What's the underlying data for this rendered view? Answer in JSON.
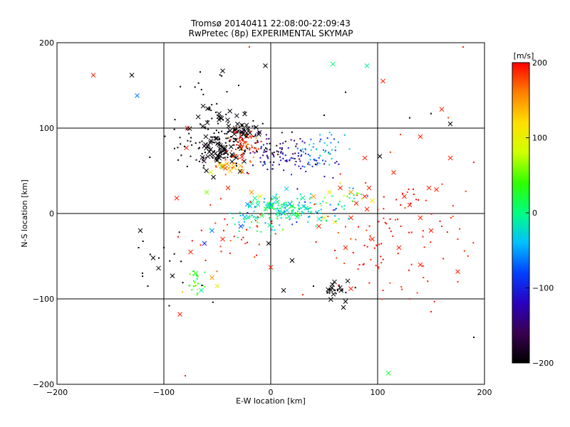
{
  "chart_data": {
    "type": "scatter",
    "title": "Tromsø 20140411 22:08:00-22:09:43",
    "subtitle": "RwPretec (8p) EXPERIMENTAL SKYMAP",
    "xlabel": "E-W location [km]",
    "ylabel": "N-S location [km]",
    "xlim": [
      -200,
      200
    ],
    "ylim": [
      -200,
      200
    ],
    "xticks": [
      -200,
      -100,
      0,
      100,
      200
    ],
    "yticks": [
      -200,
      -100,
      0,
      100,
      200
    ],
    "xtick_labels": [
      "−200",
      "−100",
      "0",
      "100",
      "200"
    ],
    "ytick_labels": [
      "−200",
      "−100",
      "0",
      "100",
      "200"
    ],
    "grid": true,
    "colorbar": {
      "label": "[m/s]",
      "min": -200,
      "max": 200,
      "ticks": [
        200,
        100,
        0,
        -100,
        -200
      ],
      "tick_labels": [
        "200",
        "100",
        "0",
        "−100",
        "−200"
      ],
      "stops": [
        "#000000",
        "#3a0050",
        "#2a00c0",
        "#0040ff",
        "#00c0ff",
        "#00ff80",
        "#30ff00",
        "#d0ff00",
        "#ffe000",
        "#ff8000",
        "#ff0000"
      ]
    },
    "points": [
      {
        "x": -166,
        "y": 162,
        "v": 190,
        "m": "x"
      },
      {
        "x": -130,
        "y": 162,
        "v": -200,
        "m": "x"
      },
      {
        "x": -125,
        "y": 138,
        "v": -60,
        "m": "x"
      },
      {
        "x": -45,
        "y": 167,
        "v": -200,
        "m": "x"
      },
      {
        "x": -5,
        "y": 173,
        "v": -200,
        "m": "x"
      },
      {
        "x": 58,
        "y": 175,
        "v": 0,
        "m": "x"
      },
      {
        "x": 90,
        "y": 173,
        "v": -10,
        "m": "x"
      },
      {
        "x": 105,
        "y": 155,
        "v": 190,
        "m": "x"
      },
      {
        "x": 160,
        "y": 122,
        "v": 190,
        "m": "x"
      },
      {
        "x": 168,
        "y": 105,
        "v": -200,
        "m": "x"
      },
      {
        "x": 140,
        "y": 90,
        "v": 190,
        "m": "x"
      },
      {
        "x": 168,
        "y": 65,
        "v": 190,
        "m": "x"
      },
      {
        "x": 115,
        "y": 48,
        "v": 190,
        "m": "x"
      },
      {
        "x": 148,
        "y": 30,
        "v": 190,
        "m": "x"
      },
      {
        "x": 102,
        "y": 67,
        "v": -200,
        "m": "x"
      },
      {
        "x": 88,
        "y": 65,
        "v": 190,
        "m": "x"
      },
      {
        "x": -78,
        "y": 100,
        "v": 190,
        "m": "x"
      },
      {
        "x": -79,
        "y": 77,
        "v": 190,
        "m": "x"
      },
      {
        "x": -88,
        "y": 18,
        "v": 190,
        "m": "x"
      },
      {
        "x": -122,
        "y": -20,
        "v": -200,
        "m": "x"
      },
      {
        "x": -110,
        "y": -52,
        "v": -200,
        "m": "x"
      },
      {
        "x": -105,
        "y": -64,
        "v": -200,
        "m": "x"
      },
      {
        "x": -92,
        "y": -73,
        "v": -200,
        "m": "x"
      },
      {
        "x": -85,
        "y": -118,
        "v": 190,
        "m": "x"
      },
      {
        "x": -75,
        "y": -45,
        "v": 190,
        "m": "x"
      },
      {
        "x": -62,
        "y": -35,
        "v": -100,
        "m": "x"
      },
      {
        "x": -55,
        "y": -20,
        "v": -60,
        "m": "x"
      },
      {
        "x": -60,
        "y": 25,
        "v": 60,
        "m": "x"
      },
      {
        "x": -40,
        "y": 30,
        "v": 190,
        "m": "x"
      },
      {
        "x": -38,
        "y": 50,
        "v": 130,
        "m": "x"
      },
      {
        "x": -28,
        "y": 50,
        "v": 80,
        "m": "x"
      },
      {
        "x": -18,
        "y": 25,
        "v": 150,
        "m": "x"
      },
      {
        "x": -10,
        "y": 20,
        "v": 110,
        "m": "x"
      },
      {
        "x": -28,
        "y": -15,
        "v": -80,
        "m": "x"
      },
      {
        "x": -45,
        "y": -30,
        "v": 190,
        "m": "x"
      },
      {
        "x": -2,
        "y": -35,
        "v": -200,
        "m": "x"
      },
      {
        "x": -70,
        "y": -70,
        "v": 30,
        "m": "x"
      },
      {
        "x": -65,
        "y": -90,
        "v": -10,
        "m": "x"
      },
      {
        "x": -50,
        "y": -85,
        "v": 100,
        "m": "x"
      },
      {
        "x": -55,
        "y": -75,
        "v": 150,
        "m": "x"
      },
      {
        "x": 0,
        "y": -63,
        "v": 190,
        "m": "x"
      },
      {
        "x": 20,
        "y": -55,
        "v": -200,
        "m": "x"
      },
      {
        "x": 12,
        "y": -90,
        "v": -200,
        "m": "x"
      },
      {
        "x": 40,
        "y": 20,
        "v": 150,
        "m": "x"
      },
      {
        "x": 55,
        "y": 25,
        "v": 110,
        "m": "x"
      },
      {
        "x": 65,
        "y": 30,
        "v": 190,
        "m": "x"
      },
      {
        "x": 75,
        "y": 25,
        "v": 150,
        "m": "x"
      },
      {
        "x": 92,
        "y": 30,
        "v": 190,
        "m": "x"
      },
      {
        "x": 88,
        "y": 20,
        "v": 190,
        "m": "x"
      },
      {
        "x": 95,
        "y": 15,
        "v": 110,
        "m": "x"
      },
      {
        "x": 125,
        "y": 20,
        "v": 190,
        "m": "x"
      },
      {
        "x": 130,
        "y": 10,
        "v": 190,
        "m": "x"
      },
      {
        "x": 155,
        "y": 28,
        "v": 190,
        "m": "x"
      },
      {
        "x": 80,
        "y": 12,
        "v": 190,
        "m": "x"
      },
      {
        "x": 90,
        "y": 5,
        "v": 190,
        "m": "x"
      },
      {
        "x": 60,
        "y": -10,
        "v": 110,
        "m": "x"
      },
      {
        "x": 75,
        "y": -5,
        "v": 190,
        "m": "x"
      },
      {
        "x": 45,
        "y": -15,
        "v": 190,
        "m": "x"
      },
      {
        "x": 50,
        "y": -5,
        "v": 100,
        "m": "x"
      },
      {
        "x": 70,
        "y": -40,
        "v": 190,
        "m": "x"
      },
      {
        "x": 95,
        "y": -30,
        "v": 190,
        "m": "x"
      },
      {
        "x": 120,
        "y": -40,
        "v": 190,
        "m": "x"
      },
      {
        "x": 140,
        "y": -60,
        "v": 190,
        "m": "x"
      },
      {
        "x": 175,
        "y": -68,
        "v": 190,
        "m": "x"
      },
      {
        "x": 140,
        "y": -5,
        "v": 190,
        "m": "x"
      },
      {
        "x": 150,
        "y": -20,
        "v": 190,
        "m": "x"
      },
      {
        "x": 68,
        "y": -110,
        "v": -200,
        "m": "x"
      },
      {
        "x": 70,
        "y": -103,
        "v": -200,
        "m": "x"
      },
      {
        "x": 72,
        "y": -79,
        "v": -200,
        "m": "x"
      },
      {
        "x": 75,
        "y": -88,
        "v": 190,
        "m": "x"
      },
      {
        "x": 110,
        "y": -187,
        "v": 20,
        "m": "x"
      },
      {
        "x": -20,
        "y": 195,
        "v": 190,
        "m": "d"
      },
      {
        "x": -30,
        "y": 150,
        "v": -200,
        "m": "d"
      },
      {
        "x": 70,
        "y": 142,
        "v": -200,
        "m": "d"
      },
      {
        "x": 50,
        "y": 115,
        "v": -200,
        "m": "d"
      },
      {
        "x": 130,
        "y": 112,
        "v": -200,
        "m": "d"
      },
      {
        "x": 150,
        "y": 117,
        "v": -200,
        "m": "d"
      },
      {
        "x": -80,
        "y": -190,
        "v": 190,
        "m": "d"
      },
      {
        "x": 160,
        "y": -15,
        "v": 190,
        "m": "d"
      },
      {
        "x": 175,
        "y": -30,
        "v": 190,
        "m": "d"
      },
      {
        "x": 130,
        "y": -100,
        "v": 190,
        "m": "d"
      },
      {
        "x": 105,
        "y": -90,
        "v": 190,
        "m": "d"
      },
      {
        "x": 150,
        "y": -115,
        "v": 190,
        "m": "d"
      },
      {
        "x": 190,
        "y": -145,
        "v": -200,
        "m": "d"
      },
      {
        "x": 180,
        "y": 195,
        "v": 190,
        "m": "d"
      },
      {
        "x": 190,
        "y": 60,
        "v": 190,
        "m": "d"
      },
      {
        "x": 175,
        "y": -80,
        "v": 190,
        "m": "d"
      },
      {
        "x": -120,
        "y": -70,
        "v": -200,
        "m": "d"
      },
      {
        "x": -115,
        "y": -85,
        "v": -200,
        "m": "d"
      },
      {
        "x": -100,
        "y": -40,
        "v": -200,
        "m": "d"
      },
      {
        "x": -95,
        "y": -108,
        "v": -200,
        "m": "d"
      },
      {
        "x": 30,
        "y": -95,
        "v": 190,
        "m": "d"
      },
      {
        "x": 40,
        "y": -85,
        "v": -200,
        "m": "d"
      }
    ],
    "clusters": [
      {
        "cx": -45,
        "cy": 75,
        "sx": 14,
        "sy": 10,
        "n": 110,
        "v": -200,
        "vspread": 10,
        "m": "dx"
      },
      {
        "cx": -30,
        "cy": 95,
        "sx": 8,
        "sy": 5,
        "n": 55,
        "v": -200,
        "vspread": 10,
        "m": "dx"
      },
      {
        "cx": -25,
        "cy": 88,
        "sx": 6,
        "sy": 6,
        "n": 35,
        "v": 180,
        "vspread": 20,
        "m": "d"
      },
      {
        "cx": -22,
        "cy": 75,
        "sx": 8,
        "sy": 8,
        "n": 35,
        "v": 185,
        "vspread": 15,
        "m": "d"
      },
      {
        "cx": -40,
        "cy": 55,
        "sx": 8,
        "sy": 5,
        "n": 25,
        "v": 150,
        "vspread": 40,
        "m": "dx"
      },
      {
        "cx": -55,
        "cy": 112,
        "sx": 9,
        "sy": 8,
        "n": 30,
        "v": -200,
        "vspread": 10,
        "m": "dx"
      },
      {
        "cx": -60,
        "cy": 80,
        "sx": 20,
        "sy": 12,
        "n": 45,
        "v": -200,
        "vspread": 10,
        "m": "d"
      },
      {
        "cx": 0,
        "cy": 70,
        "sx": 15,
        "sy": 12,
        "n": 80,
        "v": -160,
        "vspread": 25,
        "m": "d"
      },
      {
        "cx": 30,
        "cy": 62,
        "sx": 15,
        "sy": 10,
        "n": 60,
        "v": -100,
        "vspread": 25,
        "m": "d"
      },
      {
        "cx": 50,
        "cy": 78,
        "sx": 12,
        "sy": 8,
        "n": 35,
        "v": -40,
        "vspread": 30,
        "m": "d"
      },
      {
        "cx": 10,
        "cy": 8,
        "sx": 18,
        "sy": 8,
        "n": 120,
        "v": -10,
        "vspread": 30,
        "m": "dx"
      },
      {
        "cx": 40,
        "cy": 2,
        "sx": 15,
        "sy": 8,
        "n": 40,
        "v": -30,
        "vspread": 30,
        "m": "d"
      },
      {
        "cx": -15,
        "cy": -10,
        "sx": 15,
        "sy": 6,
        "n": 30,
        "v": -20,
        "vspread": 30,
        "m": "d"
      },
      {
        "cx": 70,
        "cy": 20,
        "sx": 12,
        "sy": 10,
        "n": 25,
        "v": 20,
        "vspread": 40,
        "m": "d"
      },
      {
        "cx": 60,
        "cy": -90,
        "sx": 5,
        "sy": 4,
        "n": 22,
        "v": -200,
        "vspread": 5,
        "m": "dx"
      },
      {
        "cx": -70,
        "cy": -80,
        "sx": 6,
        "sy": 6,
        "n": 25,
        "v": 30,
        "vspread": 30,
        "m": "d"
      },
      {
        "cx": 130,
        "cy": -20,
        "sx": 30,
        "sy": 40,
        "n": 70,
        "v": 190,
        "vspread": 10,
        "m": "d"
      },
      {
        "cx": -30,
        "cy": -25,
        "sx": 25,
        "sy": 20,
        "n": 35,
        "v": 190,
        "vspread": 10,
        "m": "d"
      },
      {
        "cx": 80,
        "cy": -40,
        "sx": 20,
        "sy": 25,
        "n": 30,
        "v": 190,
        "vspread": 10,
        "m": "d"
      },
      {
        "cx": -60,
        "cy": 150,
        "sx": 15,
        "sy": 15,
        "n": 10,
        "v": -200,
        "vspread": 5,
        "m": "d"
      },
      {
        "cx": -90,
        "cy": -70,
        "sx": 15,
        "sy": 20,
        "n": 12,
        "v": -200,
        "vspread": 5,
        "m": "d"
      }
    ]
  }
}
